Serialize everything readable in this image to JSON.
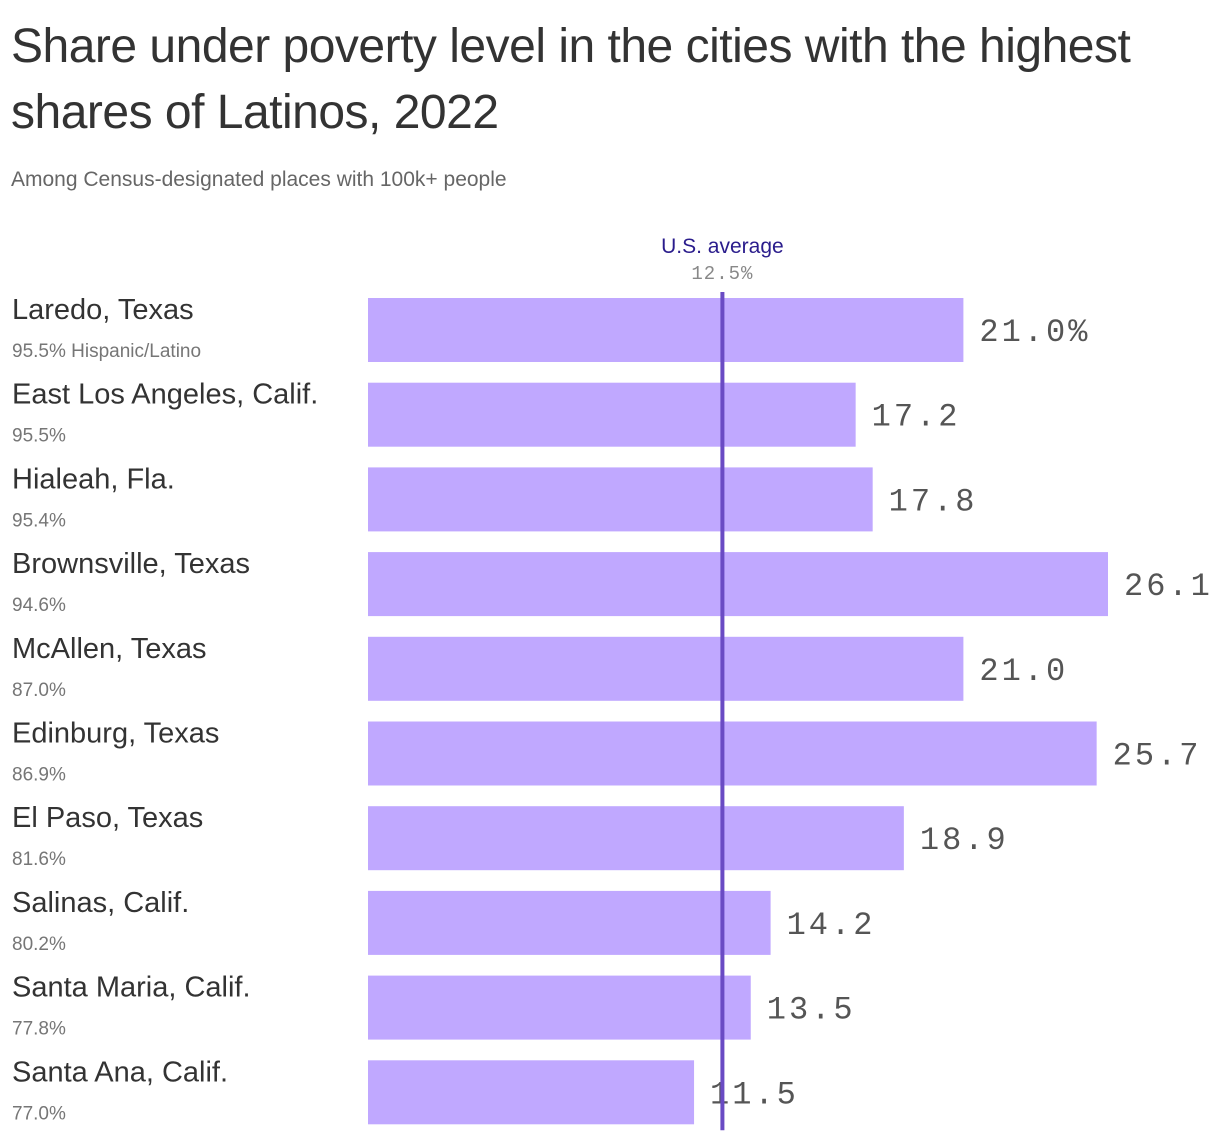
{
  "header": {
    "title": "Share under poverty level in the cities with the highest shares of Latinos, 2022",
    "subtitle": "Among Census-designated places with 100k+ people"
  },
  "colors": {
    "bar": "#c0a8ff",
    "reference_line": "#6a4bc4",
    "reference_text": "#2a1c8c"
  },
  "chart_data": {
    "type": "bar",
    "orientation": "horizontal",
    "title": "Share under poverty level in the cities with the highest shares of Latinos, 2022",
    "subtitle": "Among Census-designated places with 100k+ people",
    "categories": [
      "Laredo, Texas",
      "East Los Angeles, Calif.",
      "Hialeah, Fla.",
      "Brownsville, Texas",
      "McAllen, Texas",
      "Edinburg, Texas",
      "El Paso, Texas",
      "Salinas, Calif.",
      "Santa Maria, Calif.",
      "Santa Ana, Calif."
    ],
    "category_sublabels": [
      "95.5% Hispanic/Latino",
      "95.5%",
      "95.4%",
      "94.6%",
      "87.0%",
      "86.9%",
      "81.6%",
      "80.2%",
      "77.8%",
      "77.0%"
    ],
    "values": [
      21.0,
      17.2,
      17.8,
      26.1,
      21.0,
      25.7,
      18.9,
      14.2,
      13.5,
      11.5
    ],
    "value_labels": [
      "21.0%",
      "17.2",
      "17.8",
      "26.1",
      "21.0",
      "25.7",
      "18.9",
      "14.2",
      "13.5",
      "11.5"
    ],
    "reference_line": {
      "label": "U.S. average",
      "value": 12.5,
      "value_label": "12.5%"
    },
    "xlim": [
      0,
      26.1
    ],
    "grid": false,
    "legend": "none"
  }
}
